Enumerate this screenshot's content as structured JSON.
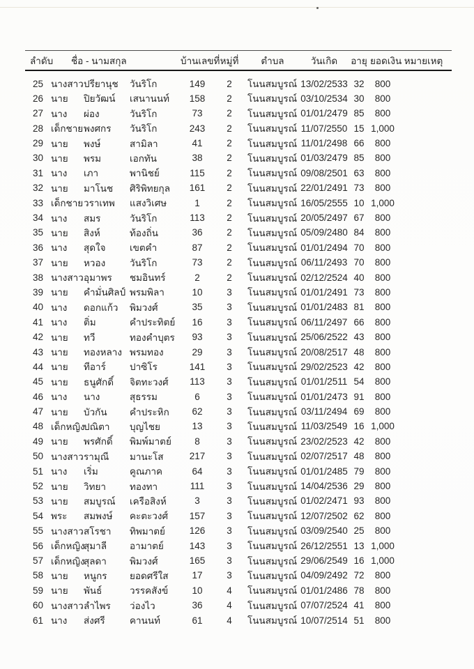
{
  "table": {
    "headers": [
      "ลำดับ",
      "ชื่อ - นามสกุล",
      "บ้านเลขที่",
      "หมู่ที่",
      "ตำบล",
      "วันเกิด",
      "อายุ",
      "ยอดเงิน",
      "หมายเหตุ"
    ],
    "rows": [
      {
        "no": "25",
        "title": "นางสาว",
        "first": "ปรียานุช",
        "last": "วันริโก",
        "house": "149",
        "moo": "2",
        "tambon": "โนนสมบูรณ์",
        "dob": "13/02/2533",
        "age": "32",
        "amount": "800",
        "remark": ""
      },
      {
        "no": "26",
        "title": "นาย",
        "first": "ปิยวัฒน์",
        "last": "เสนานนท์",
        "house": "158",
        "moo": "2",
        "tambon": "โนนสมบูรณ์",
        "dob": "03/10/2534",
        "age": "30",
        "amount": "800",
        "remark": ""
      },
      {
        "no": "27",
        "title": "นาง",
        "first": "ผ่อง",
        "last": "วันริโก",
        "house": "73",
        "moo": "2",
        "tambon": "โนนสมบูรณ์",
        "dob": "01/01/2479",
        "age": "85",
        "amount": "800",
        "remark": ""
      },
      {
        "no": "28",
        "title": "เด็กชาย",
        "first": "พงศกร",
        "last": "วันริโก",
        "house": "243",
        "moo": "2",
        "tambon": "โนนสมบูรณ์",
        "dob": "11/07/2550",
        "age": "15",
        "amount": "1,000",
        "remark": ""
      },
      {
        "no": "29",
        "title": "นาย",
        "first": "พงษ์",
        "last": "สามิลา",
        "house": "41",
        "moo": "2",
        "tambon": "โนนสมบูรณ์",
        "dob": "11/01/2498",
        "age": "66",
        "amount": "800",
        "remark": ""
      },
      {
        "no": "30",
        "title": "นาย",
        "first": "พรม",
        "last": "เอกทัน",
        "house": "38",
        "moo": "2",
        "tambon": "โนนสมบูรณ์",
        "dob": "01/03/2479",
        "age": "85",
        "amount": "800",
        "remark": ""
      },
      {
        "no": "31",
        "title": "นาง",
        "first": "เภา",
        "last": "พานิชย์",
        "house": "115",
        "moo": "2",
        "tambon": "โนนสมบูรณ์",
        "dob": "09/08/2501",
        "age": "63",
        "amount": "800",
        "remark": ""
      },
      {
        "no": "32",
        "title": "นาย",
        "first": "มาโนช",
        "last": "ศิริพิทยกุล",
        "house": "161",
        "moo": "2",
        "tambon": "โนนสมบูรณ์",
        "dob": "22/01/2491",
        "age": "73",
        "amount": "800",
        "remark": ""
      },
      {
        "no": "33",
        "title": "เด็กชาย",
        "first": "วราเทพ",
        "last": "แสงวิเศษ",
        "house": "1",
        "moo": "2",
        "tambon": "โนนสมบูรณ์",
        "dob": "16/05/2555",
        "age": "10",
        "amount": "1,000",
        "remark": ""
      },
      {
        "no": "34",
        "title": "นาง",
        "first": "สมร",
        "last": "วันริโก",
        "house": "113",
        "moo": "2",
        "tambon": "โนนสมบูรณ์",
        "dob": "20/05/2497",
        "age": "67",
        "amount": "800",
        "remark": ""
      },
      {
        "no": "35",
        "title": "นาย",
        "first": "สิงห์",
        "last": "ท้องถิ่น",
        "house": "36",
        "moo": "2",
        "tambon": "โนนสมบูรณ์",
        "dob": "05/09/2480",
        "age": "84",
        "amount": "800",
        "remark": ""
      },
      {
        "no": "36",
        "title": "นาง",
        "first": "สุดใจ",
        "last": "เขตคำ",
        "house": "87",
        "moo": "2",
        "tambon": "โนนสมบูรณ์",
        "dob": "01/01/2494",
        "age": "70",
        "amount": "800",
        "remark": ""
      },
      {
        "no": "37",
        "title": "นาย",
        "first": "หวอง",
        "last": "วันริโก",
        "house": "73",
        "moo": "2",
        "tambon": "โนนสมบูรณ์",
        "dob": "06/11/2493",
        "age": "70",
        "amount": "800",
        "remark": ""
      },
      {
        "no": "38",
        "title": "นางสาว",
        "first": "อุมาพร",
        "last": "ชมอินทร์",
        "house": "2",
        "moo": "2",
        "tambon": "โนนสมบูรณ์",
        "dob": "02/12/2524",
        "age": "40",
        "amount": "800",
        "remark": ""
      },
      {
        "no": "39",
        "title": "นาย",
        "first": "คำมั่นศิลป์",
        "last": "พรมพิลา",
        "house": "10",
        "moo": "3",
        "tambon": "โนนสมบูรณ์",
        "dob": "01/01/2491",
        "age": "73",
        "amount": "800",
        "remark": ""
      },
      {
        "no": "40",
        "title": "นาง",
        "first": "ดอกแก้ว",
        "last": "พิมวงศ์",
        "house": "35",
        "moo": "3",
        "tambon": "โนนสมบูรณ์",
        "dob": "01/01/2483",
        "age": "81",
        "amount": "800",
        "remark": ""
      },
      {
        "no": "41",
        "title": "นาง",
        "first": "ติ่ม",
        "last": "คำประทิตย์",
        "house": "16",
        "moo": "3",
        "tambon": "โนนสมบูรณ์",
        "dob": "06/11/2497",
        "age": "66",
        "amount": "800",
        "remark": ""
      },
      {
        "no": "42",
        "title": "นาย",
        "first": "ทวี",
        "last": "ทองคำบุตร",
        "house": "93",
        "moo": "3",
        "tambon": "โนนสมบูรณ์",
        "dob": "25/06/2522",
        "age": "43",
        "amount": "800",
        "remark": ""
      },
      {
        "no": "43",
        "title": "นาย",
        "first": "ทองหลาง",
        "last": "พรมทอง",
        "house": "29",
        "moo": "3",
        "tambon": "โนนสมบูรณ์",
        "dob": "20/08/2517",
        "age": "48",
        "amount": "800",
        "remark": ""
      },
      {
        "no": "44",
        "title": "นาย",
        "first": "ทีอาร์",
        "last": "ปาซิโร",
        "house": "141",
        "moo": "3",
        "tambon": "โนนสมบูรณ์",
        "dob": "29/02/2523",
        "age": "42",
        "amount": "800",
        "remark": ""
      },
      {
        "no": "45",
        "title": "นาย",
        "first": "ธนูศักดิ์",
        "last": "จิตทะวงศ์",
        "house": "113",
        "moo": "3",
        "tambon": "โนนสมบูรณ์",
        "dob": "01/01/2511",
        "age": "54",
        "amount": "800",
        "remark": ""
      },
      {
        "no": "46",
        "title": "นาง",
        "first": "นาง",
        "last": "สุธรรม",
        "house": "6",
        "moo": "3",
        "tambon": "โนนสมบูรณ์",
        "dob": "01/01/2473",
        "age": "91",
        "amount": "800",
        "remark": ""
      },
      {
        "no": "47",
        "title": "นาย",
        "first": "บัวกัน",
        "last": "คำประหิก",
        "house": "62",
        "moo": "3",
        "tambon": "โนนสมบูรณ์",
        "dob": "03/11/2494",
        "age": "69",
        "amount": "800",
        "remark": ""
      },
      {
        "no": "48",
        "title": "เด็กหญิง",
        "first": "ปณิตา",
        "last": "บุญไชย",
        "house": "13",
        "moo": "3",
        "tambon": "โนนสมบูรณ์",
        "dob": "11/03/2549",
        "age": "16",
        "amount": "1,000",
        "remark": ""
      },
      {
        "no": "49",
        "title": "นาย",
        "first": "พรศักดิ์",
        "last": "พิมพ์มาตย์",
        "house": "8",
        "moo": "3",
        "tambon": "โนนสมบูรณ์",
        "dob": "23/02/2523",
        "age": "42",
        "amount": "800",
        "remark": ""
      },
      {
        "no": "50",
        "title": "นางสาว",
        "first": "รามุณี",
        "last": "มานะโส",
        "house": "217",
        "moo": "3",
        "tambon": "โนนสมบูรณ์",
        "dob": "02/07/2517",
        "age": "48",
        "amount": "800",
        "remark": ""
      },
      {
        "no": "51",
        "title": "นาง",
        "first": "เริ่ม",
        "last": "คูณภาค",
        "house": "64",
        "moo": "3",
        "tambon": "โนนสมบูรณ์",
        "dob": "01/01/2485",
        "age": "79",
        "amount": "800",
        "remark": ""
      },
      {
        "no": "52",
        "title": "นาย",
        "first": "วิทยา",
        "last": "ทองทา",
        "house": "111",
        "moo": "3",
        "tambon": "โนนสมบูรณ์",
        "dob": "14/04/2536",
        "age": "29",
        "amount": "800",
        "remark": ""
      },
      {
        "no": "53",
        "title": "นาย",
        "first": "สมบูรณ์",
        "last": "เครือสิงห์",
        "house": "3",
        "moo": "3",
        "tambon": "โนนสมบูรณ์",
        "dob": "01/02/2471",
        "age": "93",
        "amount": "800",
        "remark": ""
      },
      {
        "no": "54",
        "title": "พระ",
        "first": "สมพงษ์",
        "last": "คะตะวงศ์",
        "house": "157",
        "moo": "3",
        "tambon": "โนนสมบูรณ์",
        "dob": "12/07/2502",
        "age": "62",
        "amount": "800",
        "remark": ""
      },
      {
        "no": "55",
        "title": "นางสาว",
        "first": "สโรชา",
        "last": "ทิพมาตย์",
        "house": "126",
        "moo": "3",
        "tambon": "โนนสมบูรณ์",
        "dob": "03/09/2540",
        "age": "25",
        "amount": "800",
        "remark": ""
      },
      {
        "no": "56",
        "title": "เด็กหญิง",
        "first": "สุมาลี",
        "last": "อามาตย์",
        "house": "143",
        "moo": "3",
        "tambon": "โนนสมบูรณ์",
        "dob": "26/12/2551",
        "age": "13",
        "amount": "1,000",
        "remark": ""
      },
      {
        "no": "57",
        "title": "เด็กหญิง",
        "first": "สุลดา",
        "last": "พิมวงศ์",
        "house": "165",
        "moo": "3",
        "tambon": "โนนสมบูรณ์",
        "dob": "29/06/2549",
        "age": "16",
        "amount": "1,000",
        "remark": ""
      },
      {
        "no": "58",
        "title": "นาย",
        "first": "หนูกร",
        "last": "ยอดศรีใส",
        "house": "17",
        "moo": "3",
        "tambon": "โนนสมบูรณ์",
        "dob": "04/09/2492",
        "age": "72",
        "amount": "800",
        "remark": ""
      },
      {
        "no": "59",
        "title": "นาย",
        "first": "พันธ์",
        "last": "วรรคสังข์",
        "house": "10",
        "moo": "4",
        "tambon": "โนนสมบูรณ์",
        "dob": "01/01/2486",
        "age": "78",
        "amount": "800",
        "remark": ""
      },
      {
        "no": "60",
        "title": "นางสาว",
        "first": "ลำไพร",
        "last": "ว่องไว",
        "house": "36",
        "moo": "4",
        "tambon": "โนนสมบูรณ์",
        "dob": "07/07/2524",
        "age": "41",
        "amount": "800",
        "remark": ""
      },
      {
        "no": "61",
        "title": "นาง",
        "first": "ส่งศรี",
        "last": "คานนท์",
        "house": "61",
        "moo": "4",
        "tambon": "โนนสมบูรณ์",
        "dob": "10/07/2514",
        "age": "51",
        "amount": "800",
        "remark": ""
      }
    ]
  }
}
